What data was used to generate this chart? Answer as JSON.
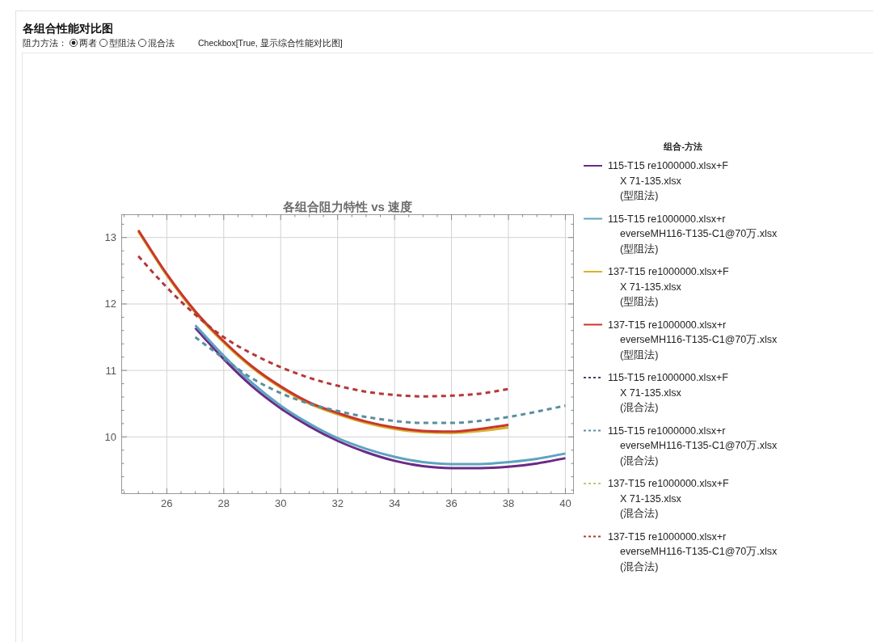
{
  "chart_data": {
    "type": "line",
    "title": "各组合阻力特性 vs 速度",
    "annotations": [
      "各组合性能对比图",
      "阻力方法：",
      "两者",
      "型阻法",
      "混合法",
      "Checkbox[True, 显示综合性能对比图]"
    ],
    "legend_title": "组合-方法",
    "legend": "right",
    "grid": true,
    "xlim": [
      24.4,
      40.3
    ],
    "xticks": [
      {
        "value": 24.5,
        "label": null
      },
      {
        "value": 25,
        "label": null
      },
      {
        "value": 25.5,
        "label": null
      },
      26,
      {
        "value": 26.5,
        "label": null
      },
      {
        "value": 27,
        "label": null
      },
      {
        "value": 27.5,
        "label": null
      },
      28,
      {
        "value": 28.5,
        "label": null
      },
      {
        "value": 29,
        "label": null
      },
      {
        "value": 29.5,
        "label": null
      },
      30,
      {
        "value": 30.5,
        "label": null
      },
      {
        "value": 31,
        "label": null
      },
      {
        "value": 31.5,
        "label": null
      },
      32,
      {
        "value": 32.5,
        "label": null
      },
      {
        "value": 33,
        "label": null
      },
      {
        "value": 33.5,
        "label": null
      },
      34,
      {
        "value": 34.5,
        "label": null
      },
      {
        "value": 35,
        "label": null
      },
      {
        "value": 35.5,
        "label": null
      },
      36,
      {
        "value": 36.5,
        "label": null
      },
      {
        "value": 37,
        "label": null
      },
      {
        "value": 37.5,
        "label": null
      },
      38,
      {
        "value": 38.5,
        "label": null
      },
      {
        "value": 39,
        "label": null
      },
      {
        "value": 39.5,
        "label": null
      },
      40
    ],
    "ylim": [
      9.14,
      13.35
    ],
    "yticks": [
      {
        "value": 9.2,
        "label": null
      },
      {
        "value": 9.4,
        "label": null
      },
      {
        "value": 9.6,
        "label": null
      },
      {
        "value": 9.8,
        "label": null
      },
      10,
      {
        "value": 10.2,
        "label": null
      },
      {
        "value": 10.4,
        "label": null
      },
      {
        "value": 10.6,
        "label": null
      },
      {
        "value": 10.8,
        "label": null
      },
      11,
      {
        "value": 11.2,
        "label": null
      },
      {
        "value": 11.4,
        "label": null
      },
      {
        "value": 11.6,
        "label": null
      },
      {
        "value": 11.8,
        "label": null
      },
      12,
      {
        "value": 12.2,
        "label": null
      },
      {
        "value": 12.4,
        "label": null
      },
      {
        "value": 12.6,
        "label": null
      },
      {
        "value": 12.8,
        "label": null
      },
      13,
      {
        "value": 13.2,
        "label": null
      }
    ],
    "series": [
      {
        "name": "115-T15 re1000000.xlsx+F\nX 71-135.xlsx\n(型阻法)",
        "color": "#6b2a86",
        "line_style": "solid",
        "x": [
          27,
          28,
          29,
          30,
          31,
          32,
          33,
          34,
          35,
          36,
          37,
          38,
          39,
          40
        ],
        "values": [
          11.64,
          11.17,
          10.76,
          10.43,
          10.16,
          9.94,
          9.77,
          9.64,
          9.56,
          9.53,
          9.53,
          9.55,
          9.6,
          9.68
        ]
      },
      {
        "name": "115-T15 re1000000.xlsx+r\neverseMH116-T135-C1@70万.xlsx\n(型阻法)",
        "color": "#5ea3c2",
        "line_style": "solid",
        "x": [
          27,
          28,
          29,
          30,
          31,
          32,
          33,
          34,
          35,
          36,
          37,
          38,
          39,
          40
        ],
        "values": [
          11.68,
          11.22,
          10.81,
          10.47,
          10.2,
          9.98,
          9.82,
          9.7,
          9.62,
          9.59,
          9.59,
          9.62,
          9.67,
          9.75
        ]
      },
      {
        "name": "137-T15 re1000000.xlsx+F\nX 71-135.xlsx\n(型阻法)",
        "color": "#d6b22c",
        "line_style": "solid",
        "x": [
          25,
          26,
          27,
          28,
          29,
          30,
          31,
          32,
          33,
          34,
          35,
          36,
          37,
          38
        ],
        "values": [
          13.09,
          12.43,
          11.87,
          11.42,
          11.04,
          10.74,
          10.5,
          10.34,
          10.21,
          10.12,
          10.07,
          10.06,
          10.09,
          10.14
        ]
      },
      {
        "name": "137-T15 re1000000.xlsx+r\neverseMH116-T135-C1@70万.xlsx\n(型阻法)",
        "color": "#c8372d",
        "line_style": "solid",
        "x": [
          25,
          26,
          27,
          28,
          29,
          30,
          31,
          32,
          33,
          34,
          35,
          36,
          37,
          38
        ],
        "values": [
          13.11,
          12.45,
          11.89,
          11.44,
          11.06,
          10.76,
          10.52,
          10.36,
          10.23,
          10.14,
          10.09,
          10.08,
          10.12,
          10.18
        ]
      },
      {
        "name": "115-T15 re1000000.xlsx+F\nX 71-135.xlsx\n(混合法)",
        "color": "#4a3b6e",
        "line_style": "dashed",
        "values": [
          null,
          null,
          null,
          null,
          null,
          null,
          null,
          null,
          null,
          null,
          null,
          null,
          null,
          null
        ]
      },
      {
        "name": "115-T15 re1000000.xlsx+r\neverseMH116-T135-C1@70万.xlsx\n(混合法)",
        "color": "#5b8e9f",
        "line_style": "dashed",
        "x": [
          27,
          28,
          29,
          30,
          31,
          32,
          33,
          34,
          35,
          36,
          37,
          38,
          39,
          40
        ],
        "values": [
          11.5,
          11.18,
          10.88,
          10.66,
          10.5,
          10.39,
          10.3,
          10.24,
          10.21,
          10.21,
          10.24,
          10.3,
          10.38,
          10.47
        ]
      },
      {
        "name": "137-T15 re1000000.xlsx+F\nX 71-135.xlsx\n(混合法)",
        "color": "#c9c26e",
        "line_style": "dashed",
        "values": [
          null,
          null,
          null,
          null,
          null,
          null,
          null,
          null,
          null,
          null,
          null,
          null,
          null,
          null
        ]
      },
      {
        "name": "137-T15 re1000000.xlsx+r\neverseMH116-T135-C1@70万.xlsx\n(混合法)",
        "color": "#b4383a",
        "line_style": "dashed",
        "x": [
          25,
          26,
          27,
          28,
          29,
          30,
          31,
          32,
          33,
          34,
          35,
          36,
          37,
          38
        ],
        "values": [
          12.72,
          12.25,
          11.84,
          11.5,
          11.25,
          11.05,
          10.89,
          10.77,
          10.68,
          10.63,
          10.61,
          10.62,
          10.65,
          10.72
        ]
      }
    ]
  }
}
